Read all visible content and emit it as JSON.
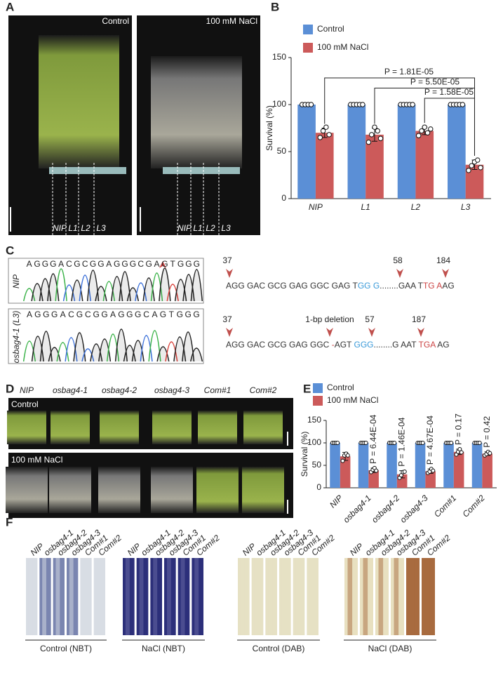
{
  "panel_labels": [
    "A",
    "B",
    "C",
    "D",
    "E",
    "F"
  ],
  "panel_a": {
    "conditions": [
      "Control",
      "100 mM NaCl"
    ],
    "lines": [
      "NIP",
      "L1",
      "L2",
      "L3"
    ]
  },
  "chart_data": [
    {
      "type": "bar",
      "y_label": "Survival (%)",
      "categories": [
        "NIP",
        "L1",
        "L2",
        "L3"
      ],
      "series": [
        {
          "name": "Control",
          "color": "#5b8fd6",
          "values": [
            100,
            100,
            100,
            100
          ],
          "errors": [
            0,
            0,
            0,
            0
          ],
          "points": [
            [
              100,
              100,
              100,
              100
            ],
            [
              100,
              100,
              100,
              100,
              100
            ],
            [
              100,
              100,
              100,
              100,
              100
            ],
            [
              100,
              100,
              100,
              100,
              100
            ]
          ]
        },
        {
          "name": "100 mM NaCl",
          "color": "#cc5a5a",
          "values": [
            70,
            68,
            72,
            36
          ],
          "errors": [
            5,
            7,
            4,
            5
          ],
          "points": [
            [
              65,
              72,
              76,
              68
            ],
            [
              60,
              68,
              76,
              72,
              64
            ],
            [
              67,
              72,
              76,
              70,
              74
            ],
            [
              30,
              35,
              39,
              41,
              33
            ]
          ]
        }
      ],
      "annotations": [
        "P = 1.81E-05",
        "P = 5.50E-05",
        "P = 1.58E-05"
      ],
      "ylim": [
        0,
        150
      ],
      "yticks": [
        0,
        50,
        100,
        150
      ]
    },
    {
      "type": "bar",
      "y_label": "Survival (%)",
      "categories": [
        "NIP",
        "osbag4-1",
        "osbag4-2",
        "osbag4-3",
        "Com#1",
        "Com#2"
      ],
      "series": [
        {
          "name": "Control",
          "color": "#5b8fd6",
          "values": [
            100,
            100,
            100,
            100,
            100,
            100
          ],
          "errors": [
            0,
            0,
            0,
            0,
            0,
            0
          ],
          "points": [
            [
              100,
              100,
              100,
              100
            ],
            [
              100,
              100,
              100,
              100
            ],
            [
              100,
              100,
              100,
              100
            ],
            [
              100,
              100,
              100,
              100
            ],
            [
              100,
              100,
              100,
              100
            ],
            [
              100,
              100,
              100,
              100
            ]
          ]
        },
        {
          "name": "100 mM NaCl",
          "color": "#cc5a5a",
          "values": [
            70,
            39,
            30,
            37,
            80,
            76
          ],
          "errors": [
            9,
            5,
            8,
            5,
            6,
            4
          ],
          "points": [
            [
              60,
              72,
              76,
              72
            ],
            [
              35,
              40,
              44,
              38
            ],
            [
              22,
              28,
              35,
              36
            ],
            [
              33,
              36,
              42,
              38
            ],
            [
              74,
              80,
              86,
              79
            ],
            [
              72,
              75,
              80,
              77
            ]
          ]
        }
      ],
      "p_values": [
        null,
        "P = 6.44E-04",
        "P = 1.46E-04",
        "P = 4.67E-04",
        "P = 0.17",
        "P = 0.42"
      ],
      "ylim": [
        0,
        150
      ],
      "yticks": [
        0,
        50,
        100,
        150
      ]
    }
  ],
  "panel_c": {
    "rows": [
      {
        "label": "NIP",
        "bases": [
          "A",
          "G",
          "G",
          "G",
          "A",
          "C",
          "G",
          "C",
          "G",
          "G",
          "A",
          "G",
          "G",
          "G",
          "C",
          "G",
          "A",
          "G",
          "T",
          "G",
          "G",
          "G"
        ],
        "sequence": [
          {
            "text": "AGG GAC GCG GAG GGC GAG T",
            "color": "#333333"
          },
          {
            "text": "GG G",
            "color": "#3a9ad9"
          },
          {
            "text": "........GAA T",
            "color": "#333333"
          },
          {
            "text": "TG A",
            "color": "#cc4444"
          },
          {
            "text": "AG",
            "color": "#333333"
          }
        ],
        "markers": [
          37,
          58,
          184
        ],
        "note": null
      },
      {
        "label": "osbag4-1 (L3)",
        "bases": [
          "A",
          "G",
          "G",
          "G",
          "A",
          "C",
          "G",
          "C",
          "G",
          "G",
          "A",
          "G",
          "G",
          "G",
          "C",
          "A",
          "G",
          "T",
          "G",
          "G",
          "G"
        ],
        "sequence": [
          {
            "text": "AGG GAC GCG GAG GGC ",
            "color": "#333333"
          },
          {
            "text": "-",
            "color": "#cc4444"
          },
          {
            "text": "AGT ",
            "color": "#333333"
          },
          {
            "text": "GGG",
            "color": "#3a9ad9"
          },
          {
            "text": "........G AAT ",
            "color": "#333333"
          },
          {
            "text": "TGA",
            "color": "#cc4444"
          },
          {
            "text": " AG",
            "color": "#333333"
          }
        ],
        "markers": [
          37,
          57,
          187
        ],
        "note": "1-bp deletion"
      }
    ]
  },
  "panel_d": {
    "lines": [
      "NIP",
      "osbag4-1",
      "osbag4-2",
      "osbag4-3",
      "Com#1",
      "Com#2"
    ],
    "conditions": [
      "Control",
      "100 mM NaCl"
    ]
  },
  "panel_f": {
    "strip_labels": [
      "NIP",
      "osbag4-1",
      "osbag4-2",
      "osbag4-3",
      "Com#1",
      "Com#2"
    ],
    "groups": [
      "Control (NBT)",
      "NaCl (NBT)",
      "Control (DAB)",
      "NaCl (DAB)"
    ]
  }
}
